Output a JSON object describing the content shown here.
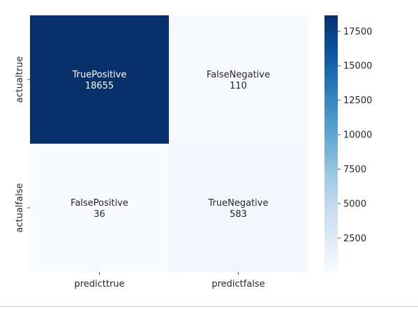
{
  "chart_data": {
    "type": "heatmap",
    "title": "",
    "xlabel": "",
    "ylabel": "",
    "x_categories": [
      "predicttrue",
      "predictfalse"
    ],
    "y_categories": [
      "actualtrue",
      "actualfalse"
    ],
    "cells": [
      [
        {
          "label": "TruePositive",
          "value": 18655
        },
        {
          "label": "FalseNegative",
          "value": 110
        }
      ],
      [
        {
          "label": "FalsePositive",
          "value": 36
        },
        {
          "label": "TrueNegative",
          "value": 583
        }
      ]
    ],
    "colormap": "Blues",
    "color_low": "#f7fbff",
    "color_high": "#08306b",
    "colorbar": {
      "vmin": 36,
      "vmax": 18655,
      "ticks": [
        2500,
        5000,
        7500,
        10000,
        12500,
        15000,
        17500
      ]
    }
  }
}
